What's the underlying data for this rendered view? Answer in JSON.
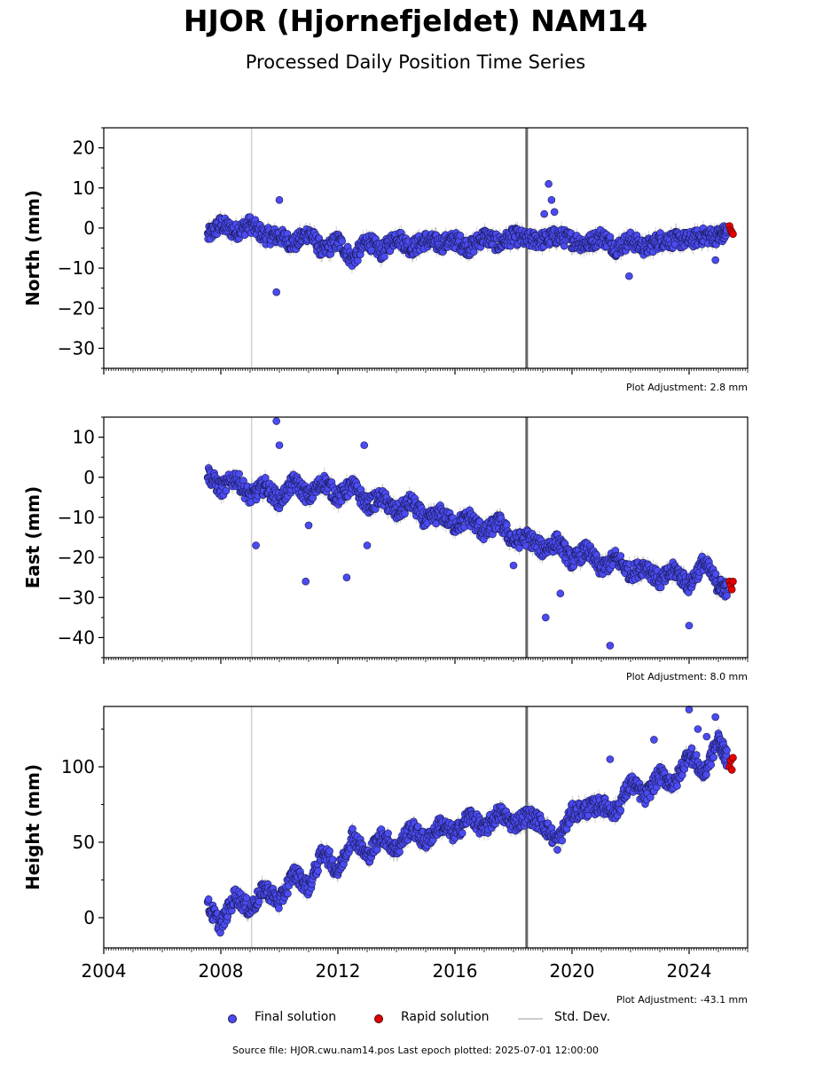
{
  "title": "HJOR (Hjornefjeldet) NAM14",
  "subtitle": "Processed Daily Position Time Series",
  "colors": {
    "final": "#4b4bf2",
    "final_edge": "#1a1a55",
    "rapid": "#e00000",
    "stddev": "#cccccc",
    "event_line_thin": "#d0d0d0",
    "event_line_thick": "#666666"
  },
  "legend": {
    "final": "Final solution",
    "rapid": "Rapid solution",
    "stddev": "Std. Dev."
  },
  "footer": "Source file: HJOR.cwu.nam14.pos  Last epoch plotted: 2025-07-01 12:00:00",
  "chart_data": [
    {
      "type": "scatter",
      "ylabel": "North (mm)",
      "adjustment": "Plot Adjustment: 2.8 mm",
      "xlim": [
        2004.0,
        2026.0
      ],
      "ylim": [
        -35,
        25
      ],
      "yticks": [
        -30,
        -20,
        -10,
        0,
        10,
        20
      ],
      "ytick_labels": [
        "−30",
        "−20",
        "−10",
        "0",
        "10",
        "20"
      ],
      "x_tick_labels_shown": false,
      "event_lines": [
        {
          "x": 2009.05,
          "style": "thin"
        },
        {
          "x": 2018.45,
          "style": "thick"
        }
      ],
      "series": [
        {
          "name": "Final solution",
          "x": [
            2007.55,
            2008.0,
            2008.5,
            2009.0,
            2009.5,
            2010.0,
            2010.5,
            2011.0,
            2011.5,
            2012.0,
            2012.5,
            2013.0,
            2013.5,
            2014.0,
            2014.5,
            2015.0,
            2015.5,
            2016.0,
            2016.5,
            2017.0,
            2017.5,
            2018.0,
            2018.5,
            2019.0,
            2019.5,
            2020.0,
            2020.5,
            2021.0,
            2021.5,
            2022.0,
            2022.5,
            2023.0,
            2023.5,
            2024.0,
            2024.5,
            2025.0,
            2025.3
          ],
          "y": [
            -2,
            1,
            -1,
            1,
            -2,
            -2,
            -4,
            -1,
            -6,
            -3,
            -8,
            -3,
            -6,
            -2,
            -5,
            -3,
            -4,
            -3,
            -5,
            -2,
            -4,
            -2,
            -3,
            -3,
            -2,
            -3,
            -4,
            -2,
            -5,
            -3,
            -5,
            -3,
            -3,
            -3,
            -2,
            -2,
            -1
          ]
        },
        {
          "name": "Rapid solution",
          "x": [
            2025.38,
            2025.42,
            2025.46,
            2025.5
          ],
          "y": [
            0.5,
            -0.5,
            -1,
            -1.5
          ]
        }
      ],
      "outliers": {
        "x": [
          2009.9,
          2010.0,
          2019.2,
          2019.3,
          2019.4,
          2019.05,
          2021.95,
          2024.9
        ],
        "y": [
          -16,
          7,
          11,
          7,
          4,
          3.5,
          -12,
          -8
        ]
      }
    },
    {
      "type": "scatter",
      "ylabel": "East (mm)",
      "adjustment": "Plot Adjustment: 8.0 mm",
      "xlim": [
        2004.0,
        2026.0
      ],
      "ylim": [
        -45,
        15
      ],
      "yticks": [
        -40,
        -30,
        -20,
        -10,
        0,
        10
      ],
      "ytick_labels": [
        "−40",
        "−30",
        "−20",
        "−10",
        "0",
        "10"
      ],
      "x_tick_labels_shown": false,
      "event_lines": [
        {
          "x": 2009.05,
          "style": "thin"
        },
        {
          "x": 2018.45,
          "style": "thick"
        }
      ],
      "series": [
        {
          "name": "Final solution",
          "x": [
            2007.55,
            2008.0,
            2008.5,
            2009.0,
            2009.5,
            2010.0,
            2010.5,
            2011.0,
            2011.5,
            2012.0,
            2012.5,
            2013.0,
            2013.5,
            2014.0,
            2014.5,
            2015.0,
            2015.5,
            2016.0,
            2016.5,
            2017.0,
            2017.5,
            2018.0,
            2018.5,
            2019.0,
            2019.5,
            2020.0,
            2020.5,
            2021.0,
            2021.5,
            2022.0,
            2022.5,
            2023.0,
            2023.5,
            2024.0,
            2024.5,
            2025.0,
            2025.3
          ],
          "y": [
            1,
            -3,
            0,
            -5,
            -2,
            -6,
            -1,
            -5,
            -1,
            -5,
            -2,
            -7,
            -5,
            -9,
            -6,
            -11,
            -9,
            -12,
            -10,
            -14,
            -11,
            -16,
            -15,
            -18,
            -16,
            -21,
            -18,
            -23,
            -20,
            -24,
            -22,
            -26,
            -23,
            -27,
            -21,
            -27,
            -28
          ]
        },
        {
          "name": "Rapid solution",
          "x": [
            2025.38,
            2025.42,
            2025.46,
            2025.5
          ],
          "y": [
            -26,
            -27,
            -28,
            -26
          ]
        }
      ],
      "outliers": {
        "x": [
          2009.2,
          2009.9,
          2010.0,
          2010.9,
          2011.0,
          2012.3,
          2012.9,
          2013.0,
          2018.0,
          2019.1,
          2019.6,
          2021.3,
          2024.0
        ],
        "y": [
          -17,
          14,
          8,
          -26,
          -12,
          -25,
          8,
          -17,
          -22,
          -35,
          -29,
          -42,
          -37
        ]
      }
    },
    {
      "type": "scatter",
      "ylabel": "Height (mm)",
      "adjustment": "Plot Adjustment: -43.1 mm",
      "xlim": [
        2004.0,
        2026.0
      ],
      "ylim": [
        -20,
        140
      ],
      "yticks": [
        0,
        50,
        100
      ],
      "ytick_labels": [
        "0",
        "50",
        "100"
      ],
      "xticks": [
        2004,
        2008,
        2012,
        2016,
        2020,
        2024
      ],
      "xtick_labels": [
        "2004",
        "2008",
        "2012",
        "2016",
        "2020",
        "2024"
      ],
      "x_tick_labels_shown": true,
      "event_lines": [
        {
          "x": 2009.05,
          "style": "thin"
        },
        {
          "x": 2018.45,
          "style": "thick"
        }
      ],
      "series": [
        {
          "name": "Final solution",
          "x": [
            2007.55,
            2008.0,
            2008.5,
            2009.0,
            2009.5,
            2010.0,
            2010.5,
            2011.0,
            2011.5,
            2012.0,
            2012.5,
            2013.0,
            2013.5,
            2014.0,
            2014.5,
            2015.0,
            2015.5,
            2016.0,
            2016.5,
            2017.0,
            2017.5,
            2018.0,
            2018.5,
            2019.0,
            2019.5,
            2020.0,
            2020.5,
            2021.0,
            2021.5,
            2022.0,
            2022.5,
            2023.0,
            2023.5,
            2024.0,
            2024.5,
            2025.0,
            2025.3
          ],
          "y": [
            8,
            -5,
            15,
            5,
            20,
            10,
            30,
            20,
            45,
            30,
            55,
            40,
            55,
            45,
            60,
            50,
            62,
            55,
            68,
            58,
            70,
            62,
            68,
            62,
            50,
            70,
            72,
            75,
            70,
            90,
            80,
            95,
            88,
            110,
            95,
            118,
            105
          ]
        },
        {
          "name": "Rapid solution",
          "x": [
            2025.38,
            2025.42,
            2025.46,
            2025.5
          ],
          "y": [
            100,
            104,
            98,
            106
          ]
        }
      ],
      "outliers": {
        "x": [
          2024.0,
          2024.3,
          2024.6,
          2024.9,
          2021.3,
          2022.8
        ],
        "y": [
          138,
          125,
          120,
          133,
          105,
          118
        ]
      }
    }
  ]
}
